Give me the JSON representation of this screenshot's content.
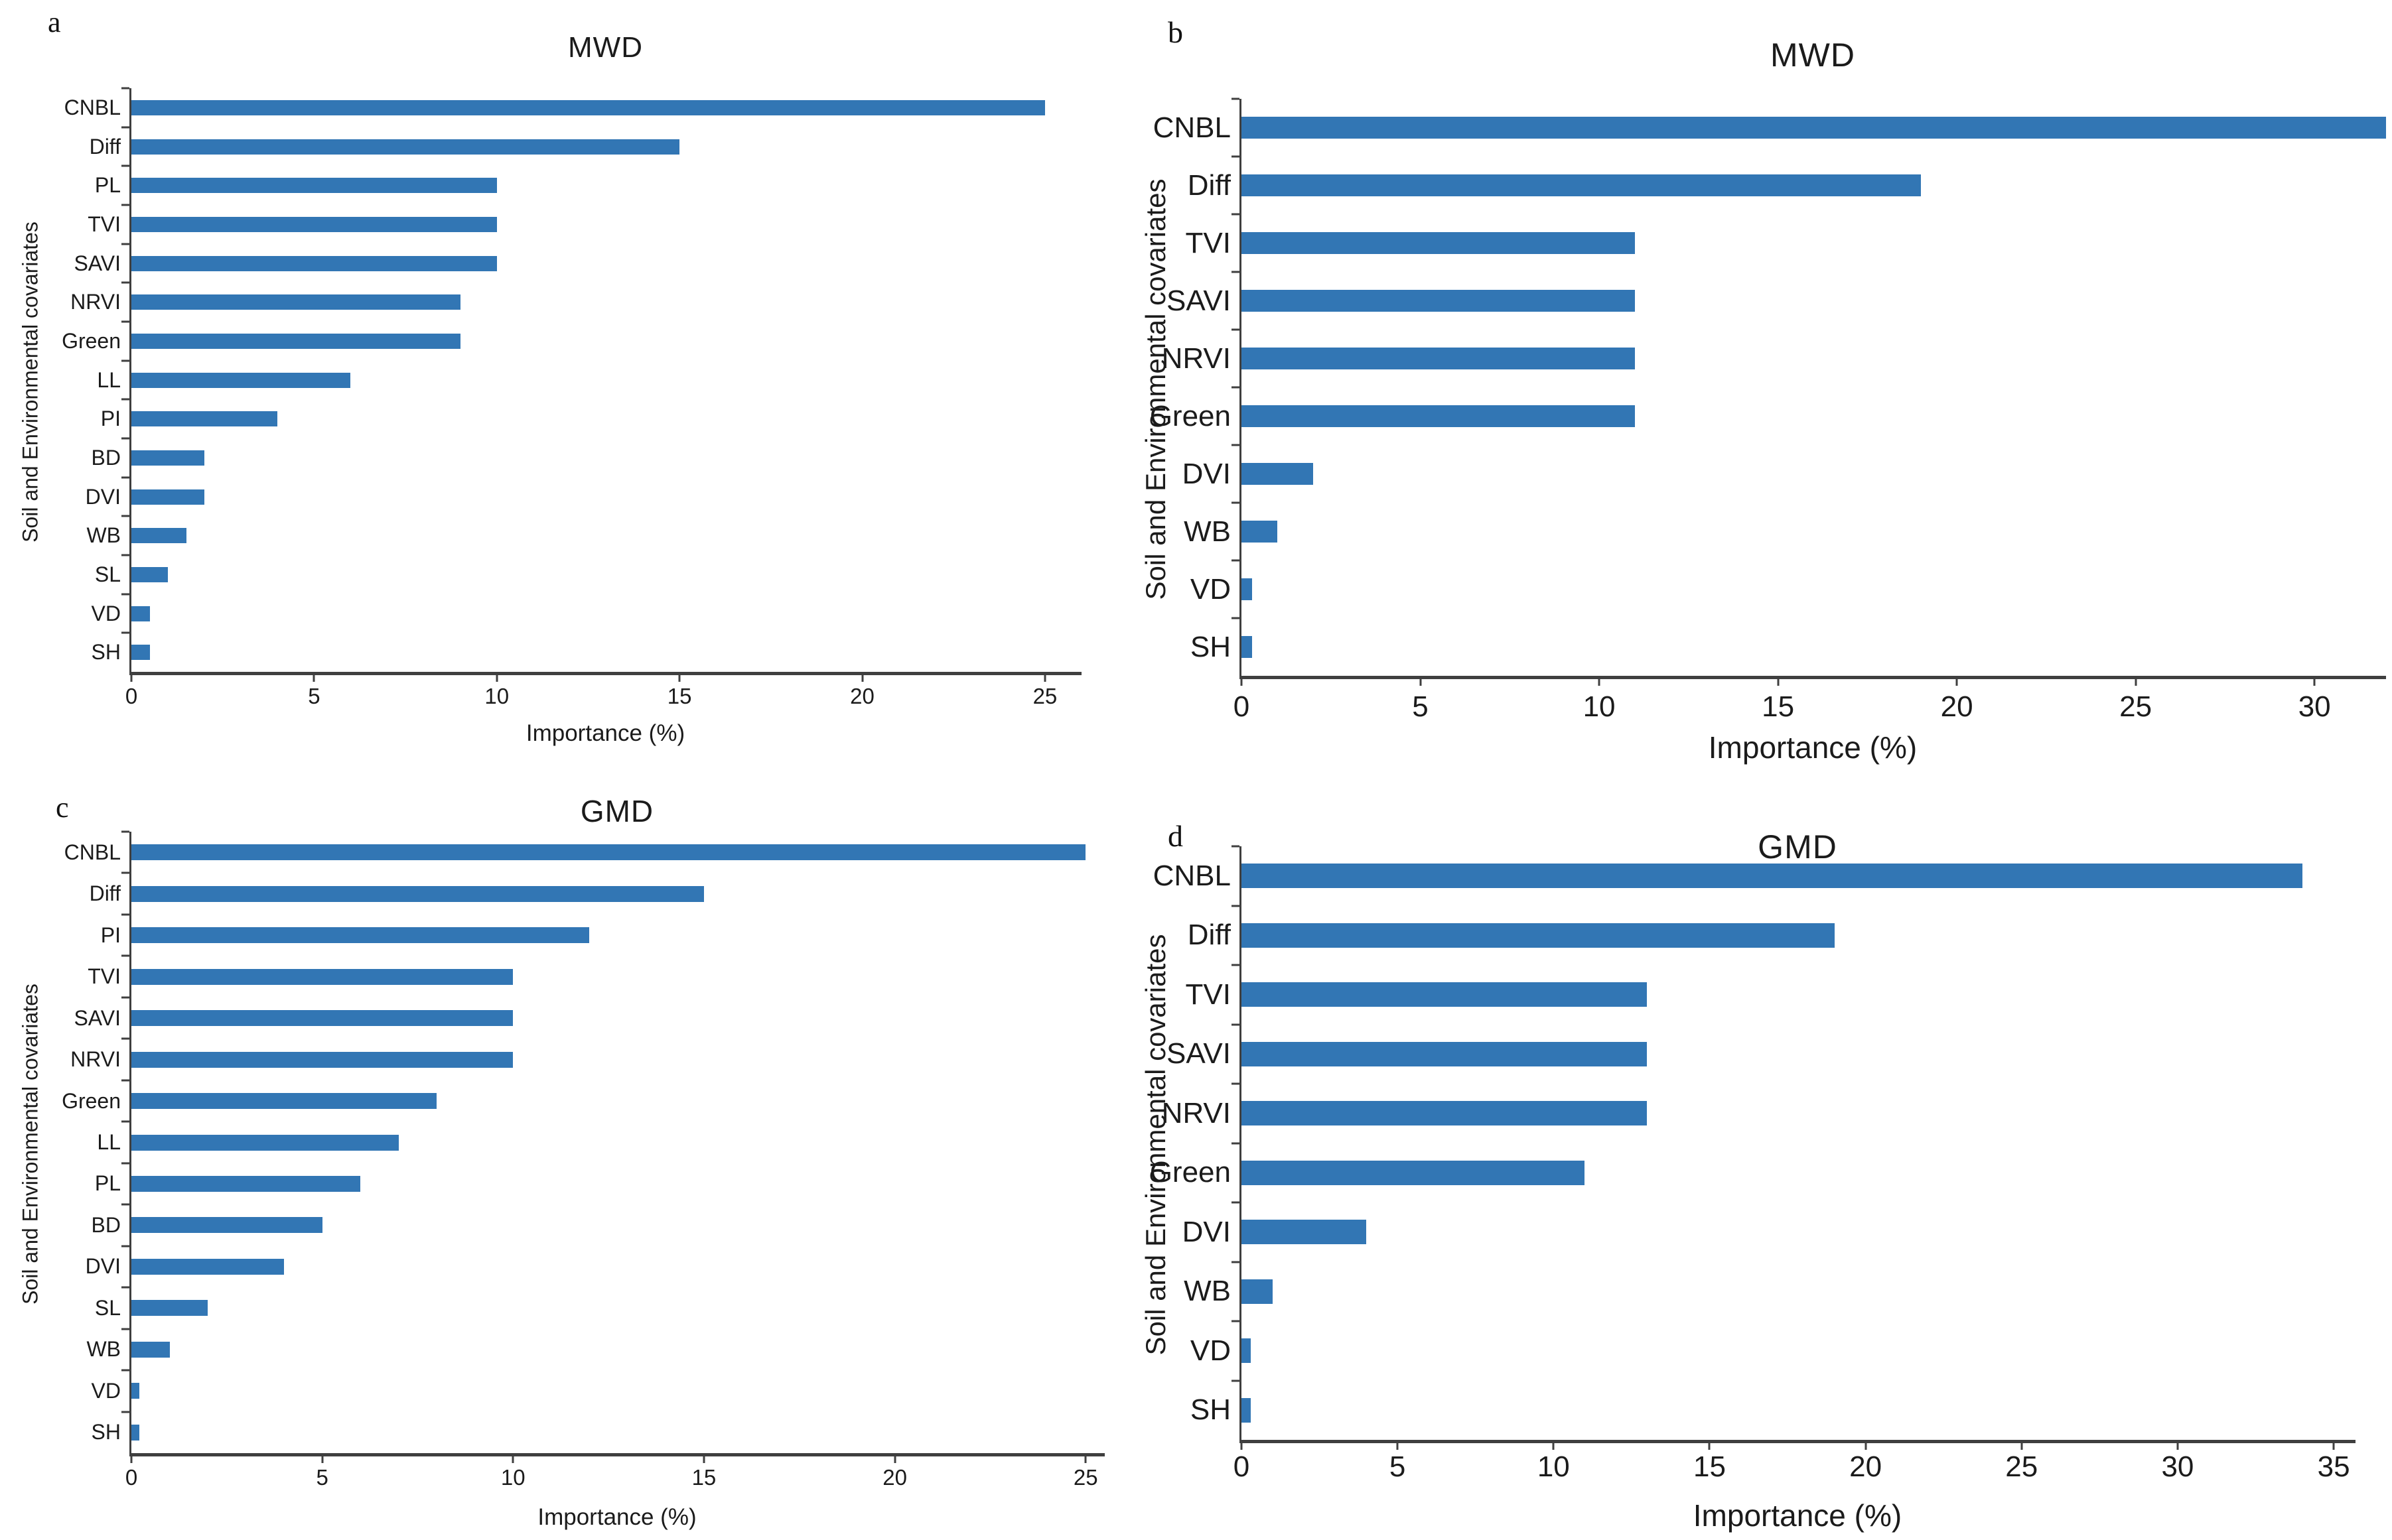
{
  "styles": {
    "bar_color": "#3276b4",
    "axis_color": "#3f3f3f",
    "background_color": "#ffffff",
    "text_color": "#1b1b1b"
  },
  "chart_data": [
    {
      "type": "bar",
      "orientation": "horizontal",
      "panel_label": "a",
      "title": "MWD",
      "xlabel": "Importance (%)",
      "ylabel": "Soil and Environmental covariates",
      "xlim": [
        0,
        26
      ],
      "x_ticks": [
        0,
        5,
        10,
        15,
        20,
        25
      ],
      "grid": false,
      "legend": false,
      "categories": [
        "CNBL",
        "Diff",
        "PL",
        "TVI",
        "SAVI",
        "NRVI",
        "Green",
        "LL",
        "PI",
        "BD",
        "DVI",
        "WB",
        "SL",
        "VD",
        "SH"
      ],
      "values": [
        25,
        15,
        10,
        10,
        10,
        9,
        9,
        6,
        4,
        2,
        2,
        1.5,
        1,
        0.5,
        0.5
      ]
    },
    {
      "type": "bar",
      "orientation": "horizontal",
      "panel_label": "b",
      "title": "MWD",
      "xlabel": "Importance (%)",
      "ylabel": "Soil and Environmental covariates",
      "xlim": [
        0,
        32
      ],
      "x_ticks": [
        0,
        5,
        10,
        15,
        20,
        25,
        30
      ],
      "grid": false,
      "legend": false,
      "categories": [
        "CNBL",
        "Diff",
        "TVI",
        "SAVI",
        "NRVI",
        "Green",
        "DVI",
        "WB",
        "VD",
        "SH"
      ],
      "values": [
        32,
        19,
        11,
        11,
        11,
        11,
        2,
        1,
        0.3,
        0.3
      ]
    },
    {
      "type": "bar",
      "orientation": "horizontal",
      "panel_label": "c",
      "title": "GMD",
      "xlabel": "Importance (%)",
      "ylabel": "Soil and Environmental covariates",
      "xlim": [
        0,
        25.5
      ],
      "x_ticks": [
        0,
        5,
        10,
        15,
        20,
        25
      ],
      "grid": false,
      "legend": false,
      "categories": [
        "CNBL",
        "Diff",
        "PI",
        "TVI",
        "SAVI",
        "NRVI",
        "Green",
        "LL",
        "PL",
        "BD",
        "DVI",
        "SL",
        "WB",
        "VD",
        "SH"
      ],
      "values": [
        25,
        15,
        12,
        10,
        10,
        10,
        8,
        7,
        6,
        5,
        4,
        2,
        1,
        0.2,
        0.2
      ]
    },
    {
      "type": "bar",
      "orientation": "horizontal",
      "panel_label": "d",
      "title": "GMD",
      "xlabel": "Importance (%)",
      "ylabel": "Soil and Environmental covariates",
      "xlim": [
        0,
        35.7
      ],
      "x_ticks": [
        0,
        5,
        10,
        15,
        20,
        25,
        30,
        35
      ],
      "grid": false,
      "legend": false,
      "categories": [
        "CNBL",
        "Diff",
        "TVI",
        "SAVI",
        "NRVI",
        "Green",
        "DVI",
        "WB",
        "VD",
        "SH"
      ],
      "values": [
        34,
        19,
        13,
        13,
        13,
        11,
        4,
        1,
        0.3,
        0.3
      ]
    }
  ]
}
